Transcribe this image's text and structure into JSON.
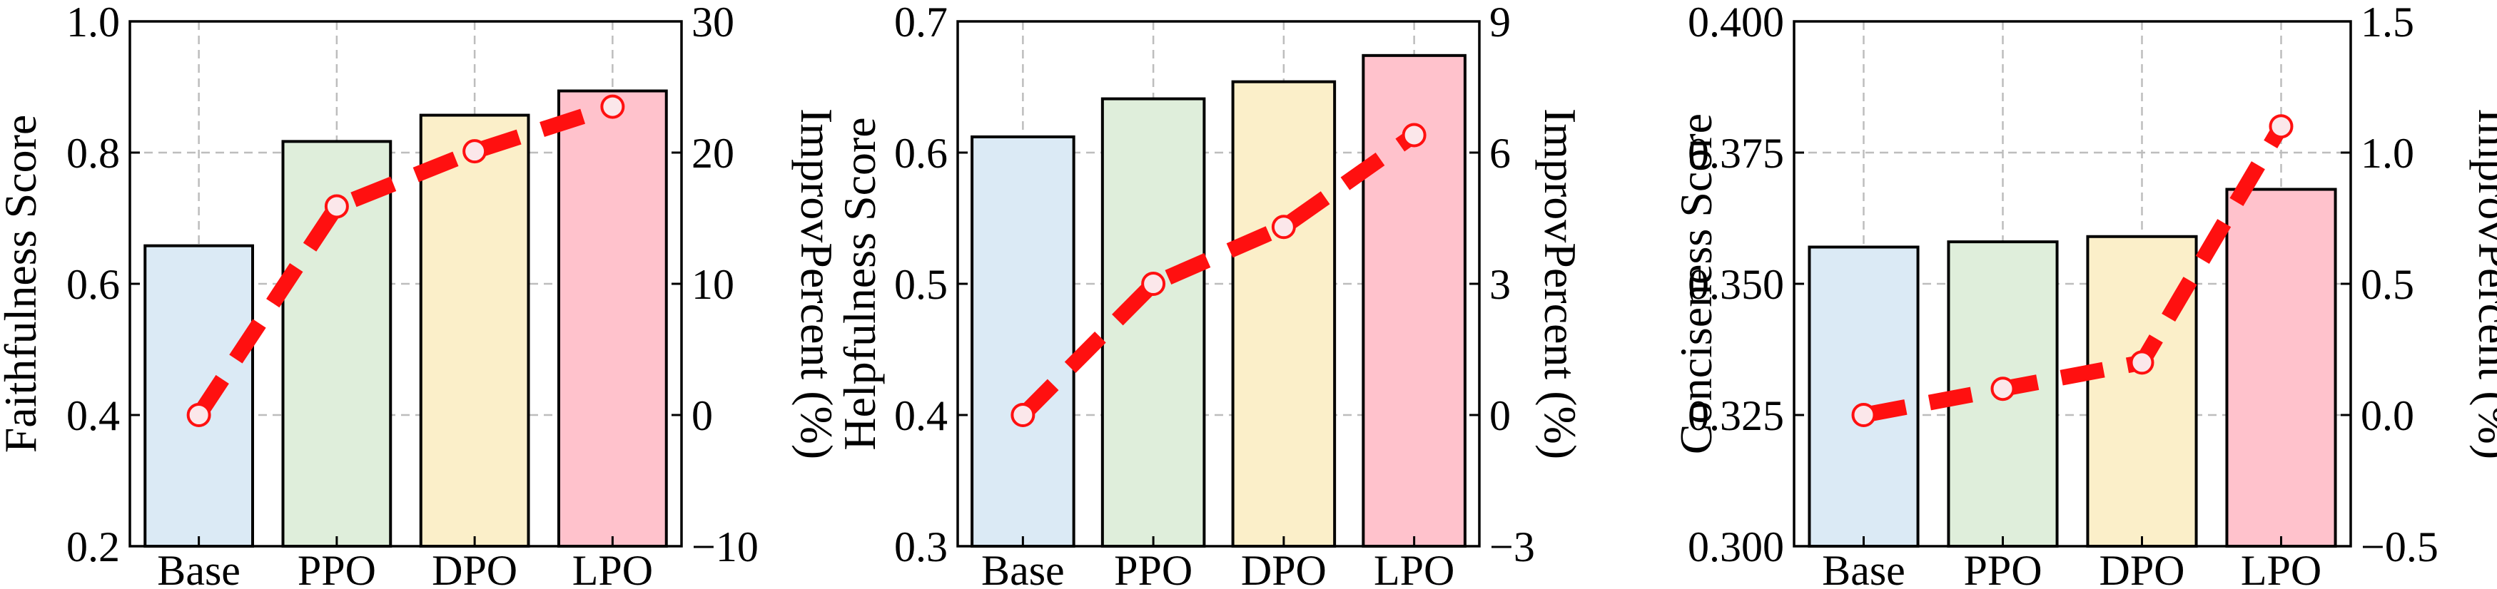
{
  "figure": {
    "bar_colors": [
      "#dbeaf5",
      "#dfeedb",
      "#fbefc9",
      "#ffc2cc"
    ],
    "line_color": "#ff1010"
  },
  "chart_data": [
    {
      "type": "bar",
      "title": "",
      "categories": [
        "Base",
        "PPO",
        "DPO",
        "LPO"
      ],
      "values": [
        0.658,
        0.817,
        0.857,
        0.894
      ],
      "ylabel": "Faithfulness Score",
      "ylim": [
        0.2,
        1.0
      ],
      "yticks": [
        0.2,
        0.4,
        0.6,
        0.8,
        1.0
      ],
      "ytick_labels": [
        "0.2",
        "0.4",
        "0.6",
        "0.8",
        "1.0"
      ],
      "grid": true,
      "line": {
        "type": "line",
        "values": [
          0.0,
          15.9,
          20.1,
          23.5
        ],
        "ylabel": "ImprovPercent (%)",
        "ylim": [
          -10,
          30
        ],
        "yticks": [
          -10,
          0,
          10,
          20,
          30
        ],
        "ytick_labels": [
          "−10",
          "0",
          "10",
          "20",
          "30"
        ]
      }
    },
    {
      "type": "bar",
      "title": "",
      "categories": [
        "Base",
        "PPO",
        "DPO",
        "LPO"
      ],
      "values": [
        0.612,
        0.641,
        0.654,
        0.674
      ],
      "ylabel": "Helpfulness Score",
      "ylim": [
        0.3,
        0.7
      ],
      "yticks": [
        0.3,
        0.4,
        0.5,
        0.6,
        0.7
      ],
      "ytick_labels": [
        "0.3",
        "0.4",
        "0.5",
        "0.6",
        "0.7"
      ],
      "grid": true,
      "line": {
        "type": "line",
        "values": [
          0.0,
          3.0,
          4.3,
          6.4
        ],
        "ylabel": "ImprovPercent (%)",
        "ylim": [
          -3,
          9
        ],
        "yticks": [
          -3,
          0,
          3,
          6,
          9
        ],
        "ytick_labels": [
          "−3",
          "0",
          "3",
          "6",
          "9"
        ]
      }
    },
    {
      "type": "bar",
      "title": "",
      "categories": [
        "Base",
        "PPO",
        "DPO",
        "LPO"
      ],
      "values": [
        0.357,
        0.358,
        0.359,
        0.368
      ],
      "ylabel": "Conciseness Score",
      "ylim": [
        0.3,
        0.4
      ],
      "yticks": [
        0.3,
        0.325,
        0.35,
        0.375,
        0.4
      ],
      "ytick_labels": [
        "0.300",
        "0.325",
        "0.350",
        "0.375",
        "0.400"
      ],
      "grid": true,
      "line": {
        "type": "line",
        "values": [
          0.0,
          0.1,
          0.2,
          1.1
        ],
        "ylabel": "ImprovPercent (%)",
        "ylim": [
          -0.5,
          1.5
        ],
        "yticks": [
          -0.5,
          0.0,
          0.5,
          1.0,
          1.5
        ],
        "ytick_labels": [
          "−0.5",
          "0.0",
          "0.5",
          "1.0",
          "1.5"
        ]
      }
    }
  ]
}
